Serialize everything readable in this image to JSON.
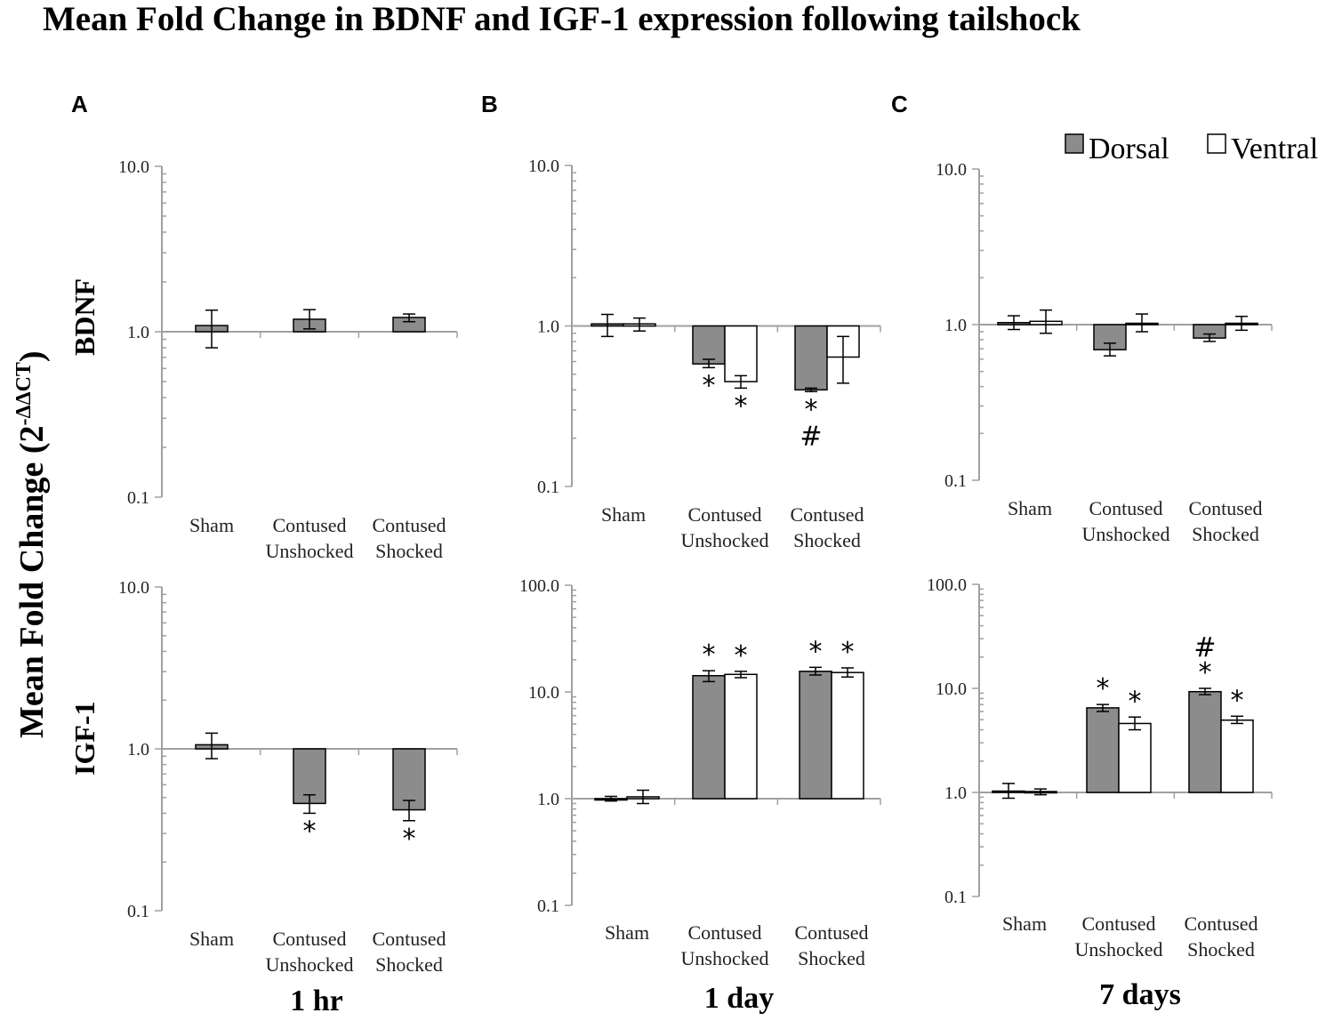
{
  "title": "Mean Fold Change in BDNF and IGF-1 expression following tailshock",
  "y_axis_label": "Mean Fold Change (2",
  "y_axis_label_sup": "-ΔΔCT",
  "y_axis_label_close": ")",
  "panel_letters": [
    "A",
    "B",
    "C"
  ],
  "row_labels": [
    "BDNF",
    "IGF-1"
  ],
  "time_labels": [
    "1 hr",
    "1 day",
    "7 days"
  ],
  "legend": [
    {
      "label": "Dorsal",
      "color": "#8c8c8c"
    },
    {
      "label": "Ventral",
      "color": "#ffffff"
    }
  ],
  "colors": {
    "dorsal": "#8c8c8c",
    "ventral": "#ffffff",
    "axis": "#a0a0a0",
    "bar_outline": "#000000"
  },
  "chart_data": [
    {
      "id": "bdnf-1hr",
      "panel": "A",
      "gene": "BDNF",
      "time": "1 hr",
      "type": "bar",
      "yscale": "log",
      "ylim": [
        0.1,
        10.0
      ],
      "yticks": [
        "10.0",
        "1.0",
        "0.1"
      ],
      "categories": [
        [
          "Sham"
        ],
        [
          "Contused",
          "Unshocked"
        ],
        [
          "Contused",
          "Shocked"
        ]
      ],
      "series": [
        {
          "name": "Dorsal",
          "values": [
            1.09,
            1.19,
            1.22
          ],
          "err_low": [
            0.8,
            1.04,
            1.15
          ],
          "err_high": [
            1.35,
            1.36,
            1.28
          ],
          "sig": [
            [],
            [],
            []
          ]
        }
      ]
    },
    {
      "id": "bdnf-1day",
      "panel": "B",
      "gene": "BDNF",
      "time": "1 day",
      "type": "bar",
      "yscale": "log",
      "ylim": [
        0.1,
        10.0
      ],
      "yticks": [
        "10.0",
        "1.0",
        "0.1"
      ],
      "categories": [
        [
          "Sham"
        ],
        [
          "Contused",
          "Unshocked"
        ],
        [
          "Contused",
          "Shocked"
        ]
      ],
      "series": [
        {
          "name": "Dorsal",
          "values": [
            1.03,
            0.58,
            0.4
          ],
          "err_low": [
            0.86,
            0.55,
            0.39
          ],
          "err_high": [
            1.18,
            0.62,
            0.41
          ],
          "sig": [
            [],
            [
              "*"
            ],
            [
              "*",
              "#"
            ]
          ]
        },
        {
          "name": "Ventral",
          "values": [
            1.03,
            0.45,
            0.64
          ],
          "err_low": [
            0.93,
            0.41,
            0.44
          ],
          "err_high": [
            1.12,
            0.49,
            0.86
          ],
          "sig": [
            [],
            [
              "*"
            ],
            []
          ]
        }
      ]
    },
    {
      "id": "bdnf-7days",
      "panel": "C",
      "gene": "BDNF",
      "time": "7 days",
      "type": "bar",
      "yscale": "log",
      "ylim": [
        0.1,
        10.0
      ],
      "yticks": [
        "10.0",
        "1.0",
        "0.1"
      ],
      "categories": [
        [
          "Sham"
        ],
        [
          "Contused",
          "Unshocked"
        ],
        [
          "Contused",
          "Shocked"
        ]
      ],
      "series": [
        {
          "name": "Dorsal",
          "values": [
            1.03,
            0.69,
            0.82
          ],
          "err_low": [
            0.93,
            0.63,
            0.78
          ],
          "err_high": [
            1.14,
            0.76,
            0.87
          ],
          "sig": [
            [],
            [],
            []
          ]
        },
        {
          "name": "Ventral",
          "values": [
            1.05,
            1.02,
            1.02
          ],
          "err_low": [
            0.88,
            0.9,
            0.92
          ],
          "err_high": [
            1.24,
            1.17,
            1.13
          ],
          "sig": [
            [],
            [],
            []
          ]
        }
      ]
    },
    {
      "id": "igf1-1hr",
      "panel": "A",
      "gene": "IGF-1",
      "time": "1 hr",
      "type": "bar",
      "yscale": "log",
      "ylim": [
        0.1,
        10.0
      ],
      "yticks": [
        "10.0",
        "1.0",
        "0.1"
      ],
      "categories": [
        [
          "Sham"
        ],
        [
          "Contused",
          "Unshocked"
        ],
        [
          "Contused",
          "Shocked"
        ]
      ],
      "series": [
        {
          "name": "Dorsal",
          "values": [
            1.06,
            0.46,
            0.42
          ],
          "err_low": [
            0.87,
            0.4,
            0.36
          ],
          "err_high": [
            1.25,
            0.52,
            0.48
          ],
          "sig": [
            [],
            [
              "*"
            ],
            [
              "*"
            ]
          ]
        }
      ]
    },
    {
      "id": "igf1-1day",
      "panel": "B",
      "gene": "IGF-1",
      "time": "1 day",
      "type": "bar",
      "yscale": "log",
      "ylim": [
        0.1,
        100.0
      ],
      "yticks": [
        "100.0",
        "10.0",
        "1.0",
        "0.1"
      ],
      "categories": [
        [
          "Sham"
        ],
        [
          "Contused",
          "Unshocked"
        ],
        [
          "Contused",
          "Shocked"
        ]
      ],
      "series": [
        {
          "name": "Dorsal",
          "values": [
            1.0,
            14.2,
            15.6
          ],
          "err_low": [
            0.95,
            12.5,
            14.4
          ],
          "err_high": [
            1.05,
            15.8,
            17.0
          ],
          "sig": [
            [],
            [
              "*"
            ],
            [
              "*"
            ]
          ]
        },
        {
          "name": "Ventral",
          "values": [
            1.04,
            14.6,
            15.2
          ],
          "err_low": [
            0.9,
            13.6,
            13.8
          ],
          "err_high": [
            1.2,
            15.6,
            16.8
          ],
          "sig": [
            [],
            [
              "*"
            ],
            [
              "*"
            ]
          ]
        }
      ]
    },
    {
      "id": "igf1-7days",
      "panel": "C",
      "gene": "IGF-1",
      "time": "7 days",
      "type": "bar",
      "yscale": "log",
      "ylim": [
        0.1,
        100.0
      ],
      "yticks": [
        "100.0",
        "10.0",
        "1.0",
        "0.1"
      ],
      "categories": [
        [
          "Sham"
        ],
        [
          "Contused",
          "Unshocked"
        ],
        [
          "Contused",
          "Shocked"
        ]
      ],
      "series": [
        {
          "name": "Dorsal",
          "values": [
            1.03,
            6.5,
            9.3
          ],
          "err_low": [
            0.88,
            6.0,
            8.7
          ],
          "err_high": [
            1.22,
            7.0,
            10.0
          ],
          "sig": [
            [],
            [
              "*"
            ],
            [
              "#",
              "*"
            ]
          ]
        },
        {
          "name": "Ventral",
          "values": [
            1.02,
            4.6,
            4.95
          ],
          "err_low": [
            0.95,
            4.0,
            4.6
          ],
          "err_high": [
            1.08,
            5.3,
            5.4
          ],
          "sig": [
            [],
            [
              "*"
            ],
            [
              "*"
            ]
          ]
        }
      ]
    }
  ]
}
